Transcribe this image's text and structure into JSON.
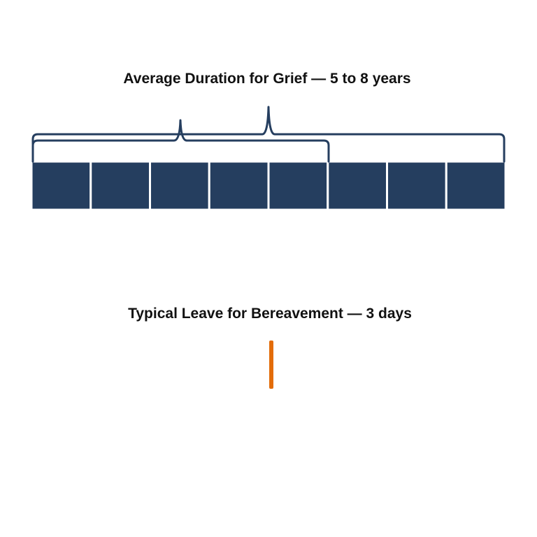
{
  "grief": {
    "title": "Average Duration for Grief — 5 to 8 years",
    "years_min": 5,
    "years_max": 8,
    "block_color": "#253E5F",
    "brace_color": "#253E5F"
  },
  "bereavement": {
    "title": "Typical Leave for Bereavement — 3 days",
    "days": 3,
    "bar_color": "#E36C09"
  }
}
